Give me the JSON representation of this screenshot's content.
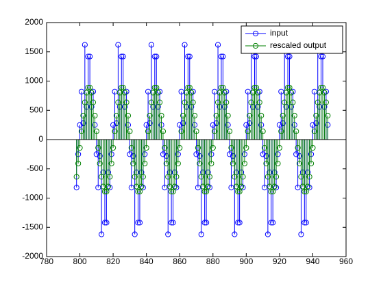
{
  "chart_data": {
    "type": "stem",
    "x": [
      798,
      799,
      800,
      801,
      802,
      803,
      804,
      805,
      806,
      807,
      808,
      809,
      810,
      811,
      812,
      813,
      814,
      815,
      816,
      817,
      818,
      819,
      820,
      821,
      822,
      823,
      824,
      825,
      826,
      827,
      828,
      829,
      830,
      831,
      832,
      833,
      834,
      835,
      836,
      837,
      838,
      839,
      840,
      841,
      842,
      843,
      844,
      845,
      846,
      847,
      848,
      849,
      850,
      851,
      852,
      853,
      854,
      855,
      856,
      857,
      858,
      859,
      860,
      861,
      862,
      863,
      864,
      865,
      866,
      867,
      868,
      869,
      870,
      871,
      872,
      873,
      874,
      875,
      876,
      877,
      878,
      879,
      880,
      881,
      882,
      883,
      884,
      885,
      886,
      887,
      888,
      889,
      890,
      891,
      892,
      893,
      894,
      895,
      896,
      897,
      898,
      899,
      900,
      901,
      902,
      903,
      904,
      905,
      906,
      907,
      908,
      909,
      910,
      911,
      912,
      913,
      914,
      915,
      916,
      917,
      918,
      919,
      920,
      921,
      922,
      923,
      924,
      925,
      926,
      927,
      928,
      929,
      930,
      931,
      932,
      933,
      934,
      935,
      936,
      937,
      938,
      939,
      940,
      941,
      942,
      943,
      944,
      945,
      946,
      947,
      948,
      949
    ],
    "series": [
      {
        "name": "input",
        "color": "#0000ff",
        "values": [
          -820,
          -250,
          250,
          820,
          280,
          1620,
          560,
          1420,
          1420,
          560,
          820,
          250,
          -250,
          -820,
          -280,
          -1620,
          -560,
          -1420,
          -1420,
          -560,
          -820,
          -250,
          250,
          820,
          280,
          1620,
          560,
          1420,
          1420,
          560,
          820,
          250,
          -250,
          -820,
          -280,
          -1620,
          -560,
          -1420,
          -1420,
          -560,
          -820,
          -250,
          250,
          820,
          280,
          1620,
          560,
          1420,
          1420,
          560,
          820,
          250,
          -250,
          -820,
          -280,
          -1620,
          -560,
          -1420,
          -1420,
          -560,
          -820,
          -250,
          250,
          820,
          280,
          1620,
          560,
          1420,
          1420,
          560,
          820,
          250,
          -250,
          -820,
          -280,
          -1620,
          -560,
          -1420,
          -1420,
          -560,
          -820,
          -250,
          250,
          820,
          280,
          1620,
          560,
          1420,
          1420,
          560,
          820,
          250,
          -250,
          -820,
          -280,
          -1620,
          -560,
          -1420,
          -1420,
          -560,
          -820,
          -250,
          250,
          820,
          280,
          1620,
          560,
          1420,
          1420,
          560,
          820,
          250,
          -250,
          -820,
          -280,
          -1620,
          -560,
          -1420,
          -1420,
          -560,
          -820,
          -250,
          250,
          820,
          280,
          1620,
          560,
          1420,
          1420,
          560,
          820,
          250,
          -250,
          -820,
          -280,
          -1620,
          -560,
          -1420,
          -1420,
          -560,
          -820,
          -250,
          250,
          820,
          280,
          1620,
          560,
          1420,
          1420,
          560,
          820,
          250
        ]
      },
      {
        "name": "rescaled output",
        "color": "#008000",
        "values": [
          -636,
          -409,
          -141,
          141,
          409,
          636,
          802,
          889,
          889,
          802,
          636,
          409,
          141,
          -141,
          -409,
          -636,
          -802,
          -889,
          -889,
          -802,
          -636,
          -409,
          -141,
          141,
          409,
          636,
          802,
          889,
          889,
          802,
          636,
          409,
          141,
          -141,
          -409,
          -636,
          -802,
          -889,
          -889,
          -802,
          -636,
          -409,
          -141,
          141,
          409,
          636,
          802,
          889,
          889,
          802,
          636,
          409,
          141,
          -141,
          -409,
          -636,
          -802,
          -889,
          -889,
          -802,
          -636,
          -409,
          -141,
          141,
          409,
          636,
          802,
          889,
          889,
          802,
          636,
          409,
          141,
          -141,
          -409,
          -636,
          -802,
          -889,
          -889,
          -802,
          -636,
          -409,
          -141,
          141,
          409,
          636,
          802,
          889,
          889,
          802,
          636,
          409,
          141,
          -141,
          -409,
          -636,
          -802,
          -889,
          -889,
          -802,
          -636,
          -409,
          -141,
          141,
          409,
          636,
          802,
          889,
          889,
          802,
          636,
          409,
          141,
          -141,
          -409,
          -636,
          -802,
          -889,
          -889,
          -802,
          -636,
          -409,
          -141,
          141,
          409,
          636,
          802,
          889,
          889,
          802,
          636,
          409,
          141,
          -141,
          -409,
          -636,
          -802,
          -889,
          -889,
          -802,
          -636,
          -409,
          -141,
          141,
          409,
          636,
          802,
          889,
          889,
          802,
          636,
          409
        ]
      }
    ],
    "xlim": [
      780,
      960
    ],
    "xticks": [
      780,
      800,
      820,
      840,
      860,
      880,
      900,
      920,
      940,
      960
    ],
    "ylim": [
      -2000,
      2000
    ],
    "yticks": [
      -2000,
      -1500,
      -1000,
      -500,
      0,
      500,
      1000,
      1500,
      2000
    ],
    "legend": "top-right"
  }
}
